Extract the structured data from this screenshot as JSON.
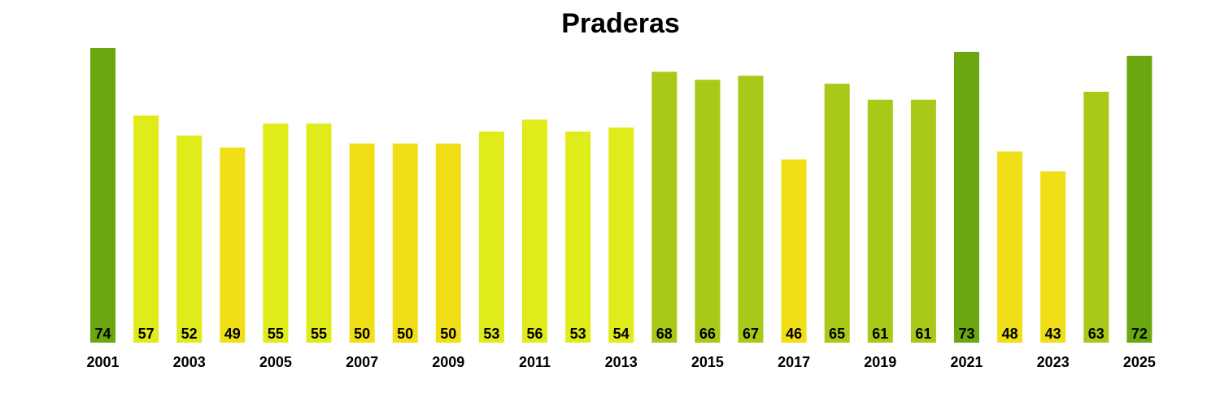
{
  "chart_data": {
    "type": "bar",
    "title": "Praderas",
    "xlabel": "",
    "ylabel": "",
    "categories": [
      "2001",
      "2002",
      "2003",
      "2004",
      "2005",
      "2006",
      "2007",
      "2008",
      "2009",
      "2010",
      "2011",
      "2012",
      "2013",
      "2014",
      "2015",
      "2016",
      "2017",
      "2018",
      "2019",
      "2020",
      "2021",
      "2022",
      "2023",
      "2024",
      "2025"
    ],
    "tick_labels": [
      "2001",
      "2003",
      "2005",
      "2007",
      "2009",
      "2011",
      "2013",
      "2015",
      "2017",
      "2019",
      "2021",
      "2023",
      "2025"
    ],
    "values": [
      74,
      57,
      52,
      49,
      55,
      55,
      50,
      50,
      50,
      53,
      56,
      53,
      54,
      68,
      66,
      67,
      46,
      65,
      61,
      61,
      73,
      48,
      43,
      63,
      72
    ],
    "ylim": [
      0,
      74
    ],
    "grid": false,
    "legend": "none",
    "colors": {
      "dark_green": "#6ba80f",
      "mid_green": "#a8c918",
      "light_yellow_green": "#e0eb1a",
      "yellow": "#f0df17"
    },
    "bar_colors": [
      "#6ba80f",
      "#e0eb1a",
      "#e0eb1a",
      "#f0df17",
      "#e0eb1a",
      "#e0eb1a",
      "#f0df17",
      "#f0df17",
      "#f0df17",
      "#e0eb1a",
      "#e0eb1a",
      "#e0eb1a",
      "#e0eb1a",
      "#a8c918",
      "#a8c918",
      "#a8c918",
      "#f0df17",
      "#a8c918",
      "#a8c918",
      "#a8c918",
      "#6ba80f",
      "#f0df17",
      "#f0df17",
      "#a8c918",
      "#6ba80f"
    ]
  }
}
